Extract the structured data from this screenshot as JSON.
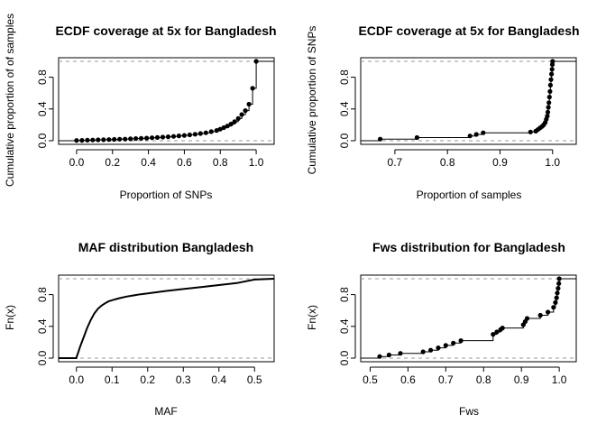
{
  "chart_data": [
    {
      "type": "scatter",
      "title": "ECDF coverage at 5x for Bangladesh",
      "xlabel": "Proportion of SNPs",
      "ylabel": "Cumulative proportion of of samples",
      "xlim": [
        -0.1,
        1.1
      ],
      "ylim": [
        0,
        1
      ],
      "xticks": [
        "0.0",
        "0.2",
        "0.4",
        "0.6",
        "0.8",
        "1.0"
      ],
      "yticks": [
        "0.0",
        "0.4",
        "0.8"
      ],
      "grid": false,
      "reference_lines_y": [
        0,
        1
      ],
      "series": [
        {
          "style": "step-points",
          "x": [
            0.0,
            0.03,
            0.06,
            0.09,
            0.12,
            0.15,
            0.18,
            0.21,
            0.24,
            0.27,
            0.3,
            0.33,
            0.36,
            0.39,
            0.42,
            0.45,
            0.48,
            0.51,
            0.54,
            0.57,
            0.6,
            0.63,
            0.66,
            0.69,
            0.72,
            0.75,
            0.78,
            0.8,
            0.82,
            0.84,
            0.86,
            0.88,
            0.9,
            0.92,
            0.94,
            0.96,
            0.98,
            1.0
          ],
          "y": [
            0.003,
            0.005,
            0.007,
            0.009,
            0.011,
            0.013,
            0.015,
            0.017,
            0.019,
            0.021,
            0.024,
            0.027,
            0.03,
            0.033,
            0.037,
            0.041,
            0.045,
            0.05,
            0.055,
            0.061,
            0.067,
            0.074,
            0.082,
            0.091,
            0.1,
            0.115,
            0.13,
            0.145,
            0.165,
            0.185,
            0.21,
            0.24,
            0.28,
            0.33,
            0.38,
            0.46,
            0.66,
            1.0
          ]
        }
      ]
    },
    {
      "type": "scatter",
      "title": "ECDF coverage at 5x for Bangladesh",
      "xlabel": "Proportion of samples",
      "ylabel": "Cumulative proportion of SNPs",
      "xlim": [
        0.635,
        1.045
      ],
      "ylim": [
        0,
        1
      ],
      "xticks": [
        "0.7",
        "0.8",
        "0.9",
        "1.0"
      ],
      "yticks": [
        "0.0",
        "0.4",
        "0.8"
      ],
      "grid": false,
      "reference_lines_y": [
        0,
        1
      ],
      "series": [
        {
          "style": "step-points",
          "x": [
            0.672,
            0.742,
            0.843,
            0.855,
            0.868,
            0.958,
            0.968,
            0.972,
            0.976,
            0.98,
            0.983,
            0.986,
            0.988,
            0.99,
            0.991,
            0.992,
            0.993,
            0.994,
            0.995,
            0.996,
            0.997,
            0.998,
            0.999,
            0.9995,
            1.0
          ],
          "y": [
            0.02,
            0.04,
            0.06,
            0.08,
            0.1,
            0.11,
            0.12,
            0.14,
            0.16,
            0.18,
            0.2,
            0.23,
            0.27,
            0.31,
            0.36,
            0.42,
            0.48,
            0.55,
            0.62,
            0.7,
            0.77,
            0.84,
            0.9,
            0.96,
            1.0
          ]
        }
      ]
    },
    {
      "type": "line",
      "title": "MAF distribution Bangladesh",
      "xlabel": "MAF",
      "ylabel": "Fn(x)",
      "xlim": [
        -0.05,
        0.555
      ],
      "ylim": [
        0,
        1
      ],
      "xticks": [
        "0.0",
        "0.1",
        "0.2",
        "0.3",
        "0.4",
        "0.5"
      ],
      "yticks": [
        "0.0",
        "0.4",
        "0.8"
      ],
      "grid": false,
      "reference_lines_y": [
        0,
        1
      ],
      "series": [
        {
          "style": "curve",
          "x": [
            0.0,
            0.005,
            0.01,
            0.015,
            0.02,
            0.03,
            0.04,
            0.05,
            0.06,
            0.07,
            0.08,
            0.09,
            0.1,
            0.12,
            0.14,
            0.16,
            0.18,
            0.2,
            0.25,
            0.3,
            0.35,
            0.4,
            0.45,
            0.5
          ],
          "y": [
            0.01,
            0.07,
            0.14,
            0.2,
            0.26,
            0.38,
            0.48,
            0.56,
            0.62,
            0.66,
            0.69,
            0.715,
            0.73,
            0.755,
            0.775,
            0.79,
            0.805,
            0.815,
            0.845,
            0.87,
            0.895,
            0.92,
            0.945,
            0.99
          ]
        }
      ]
    },
    {
      "type": "scatter",
      "title": "Fws distribution for Bangladesh",
      "xlabel": "Fws",
      "ylabel": "Fn(x)",
      "xlim": [
        0.475,
        1.045
      ],
      "ylim": [
        0,
        1
      ],
      "xticks": [
        "0.5",
        "0.6",
        "0.7",
        "0.8",
        "0.9",
        "1.0"
      ],
      "yticks": [
        "0.0",
        "0.4",
        "0.8"
      ],
      "grid": false,
      "reference_lines_y": [
        0,
        1
      ],
      "series": [
        {
          "style": "step-points",
          "x": [
            0.525,
            0.55,
            0.58,
            0.64,
            0.66,
            0.68,
            0.7,
            0.72,
            0.74,
            0.825,
            0.835,
            0.845,
            0.85,
            0.905,
            0.91,
            0.915,
            0.95,
            0.97,
            0.985,
            0.99,
            0.993,
            0.995,
            0.997,
            0.999,
            1.0
          ],
          "y": [
            0.02,
            0.04,
            0.06,
            0.08,
            0.1,
            0.13,
            0.16,
            0.19,
            0.22,
            0.3,
            0.33,
            0.36,
            0.38,
            0.42,
            0.46,
            0.5,
            0.54,
            0.58,
            0.64,
            0.7,
            0.76,
            0.82,
            0.88,
            0.94,
            1.0
          ]
        }
      ]
    }
  ]
}
